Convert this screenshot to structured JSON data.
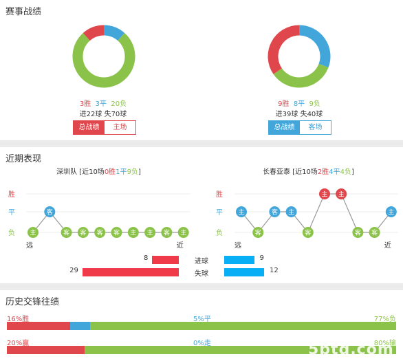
{
  "sections": {
    "season": "赛事战绩",
    "recent": "近期表现",
    "history": "历史交锋往绩"
  },
  "colors": {
    "win": "#e0474c",
    "draw": "#42a6db",
    "loss": "#8bc34a",
    "blue_bar": "#09aff5",
    "red_bar": "#f03a4a"
  },
  "season": {
    "left": {
      "wins": "3胜",
      "draws": "3平",
      "losses": "20负",
      "goals_line": "进22球 失70球",
      "tab_active": "总战绩",
      "tab_inactive": "主场",
      "donut": {
        "wins": 3,
        "draws": 3,
        "losses": 20
      }
    },
    "right": {
      "wins": "9胜",
      "draws": "8平",
      "losses": "9负",
      "goals_line": "进39球 失40球",
      "tab_active": "总战绩",
      "tab_inactive": "客场",
      "donut": {
        "wins": 9,
        "draws": 8,
        "losses": 9
      }
    }
  },
  "recent": {
    "left_title": {
      "prefix": "深圳队 [近10场",
      "w": "0胜",
      "d": "1平",
      "l": "9负",
      "suffix": "]"
    },
    "right_title": {
      "prefix": "长春亚泰 [近10场",
      "w": "2胜",
      "d": "4平",
      "l": "4负",
      "suffix": "]"
    },
    "y_labels": {
      "win": "胜",
      "draw": "平",
      "loss": "负"
    },
    "x_labels": {
      "far": "远",
      "near": "近"
    },
    "left_points": [
      {
        "r": "负",
        "v": "主"
      },
      {
        "r": "平",
        "v": "客"
      },
      {
        "r": "负",
        "v": "客"
      },
      {
        "r": "负",
        "v": "客"
      },
      {
        "r": "负",
        "v": "客"
      },
      {
        "r": "负",
        "v": "客"
      },
      {
        "r": "负",
        "v": "主"
      },
      {
        "r": "负",
        "v": "主"
      },
      {
        "r": "负",
        "v": "客"
      },
      {
        "r": "负",
        "v": "主"
      }
    ],
    "right_points": [
      {
        "r": "平",
        "v": "主"
      },
      {
        "r": "负",
        "v": "客"
      },
      {
        "r": "平",
        "v": "客"
      },
      {
        "r": "平",
        "v": "主"
      },
      {
        "r": "负",
        "v": "客"
      },
      {
        "r": "胜",
        "v": "主"
      },
      {
        "r": "胜",
        "v": "主"
      },
      {
        "r": "负",
        "v": "客"
      },
      {
        "r": "负",
        "v": "客"
      },
      {
        "r": "平",
        "v": "主"
      }
    ],
    "stats": {
      "goals_label": "进球",
      "conceded_label": "失球",
      "left_goals": "8",
      "left_conceded": "29",
      "right_goals": "9",
      "right_conceded": "12",
      "left_goals_val": 8,
      "left_conceded_val": 29,
      "right_goals_val": 9,
      "right_conceded_val": 12
    }
  },
  "history": {
    "row1": {
      "left": "16%胜",
      "mid": "5%平",
      "right": "77%负",
      "w": 16,
      "d": 5,
      "l": 77
    },
    "row2": {
      "left": "20%赢",
      "mid": "0%走",
      "right": "80%输",
      "w": 20,
      "d": 0,
      "l": 80
    }
  },
  "watermark": "5btq.com"
}
